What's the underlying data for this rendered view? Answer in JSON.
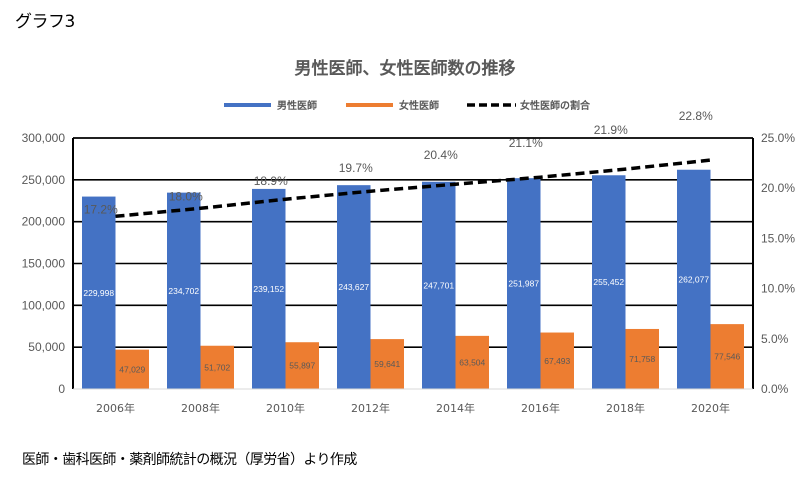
{
  "figure_label": "グラフ3",
  "source_note": "医師・歯科医師・薬剤師統計の概況（厚労省）より作成",
  "colors": {
    "male": "#4472C4",
    "female": "#ED7D31",
    "ratio_line": "#000000",
    "text": "#595959",
    "grid": "#000000"
  },
  "chart_data": {
    "type": "bar",
    "title": "男性医師、女性医師数の推移",
    "categories": [
      "2006年",
      "2008年",
      "2010年",
      "2012年",
      "2014年",
      "2016年",
      "2018年",
      "2020年"
    ],
    "series": [
      {
        "name": "男性医師",
        "type": "bar",
        "axis": "left",
        "values": [
          229998,
          234702,
          239152,
          243627,
          247701,
          251987,
          255452,
          262077
        ],
        "labels": [
          "229,998",
          "234,702",
          "239,152",
          "243,627",
          "247,701",
          "251,987",
          "255,452",
          "262,077"
        ]
      },
      {
        "name": "女性医師",
        "type": "bar",
        "axis": "left",
        "values": [
          47029,
          51702,
          55897,
          59641,
          63504,
          67493,
          71758,
          77546
        ],
        "labels": [
          "47,029",
          "51,702",
          "55,897",
          "59,641",
          "63,504",
          "67,493",
          "71,758",
          "77,546"
        ]
      },
      {
        "name": "女性医師の割合",
        "type": "line",
        "style": "dashed",
        "axis": "right",
        "values": [
          17.2,
          18.0,
          18.9,
          19.7,
          20.4,
          21.1,
          21.9,
          22.8
        ],
        "labels": [
          "17.2%",
          "18.0%",
          "18.9%",
          "19.7%",
          "20.4%",
          "21.1%",
          "21.9%",
          "22.8%"
        ]
      }
    ],
    "xlabel": "",
    "ylabel": "",
    "y_left": {
      "range": [
        0,
        300000
      ],
      "ticks": [
        0,
        50000,
        100000,
        150000,
        200000,
        250000,
        300000
      ],
      "tick_labels": [
        "0",
        "50,000",
        "100,000",
        "150,000",
        "200,000",
        "250,000",
        "300,000"
      ]
    },
    "y_right": {
      "range": [
        0,
        25
      ],
      "ticks": [
        0,
        5,
        10,
        15,
        20,
        25
      ],
      "tick_labels": [
        "0.0%",
        "5.0%",
        "10.0%",
        "15.0%",
        "20.0%",
        "25.0%"
      ]
    },
    "grid": true,
    "legend": {
      "placement": "top-center",
      "entries": [
        "男性医師",
        "女性医師",
        "女性医師の割合"
      ]
    }
  }
}
